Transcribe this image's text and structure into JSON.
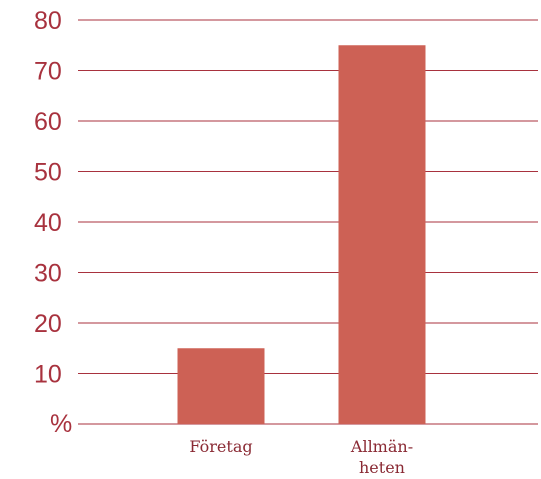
{
  "chart_data": {
    "type": "bar",
    "categories": [
      "Företag",
      "Allmän-heten"
    ],
    "category_lines": [
      [
        "Företag"
      ],
      [
        "Allmän-",
        "heten"
      ]
    ],
    "values": [
      15,
      75
    ],
    "ylabel": "%",
    "ylim": [
      0,
      80
    ],
    "yticks": [
      10,
      20,
      30,
      40,
      50,
      60,
      70,
      80
    ],
    "grid": true,
    "bar_color": "#cd6155",
    "axis_color": "#a8323e"
  }
}
